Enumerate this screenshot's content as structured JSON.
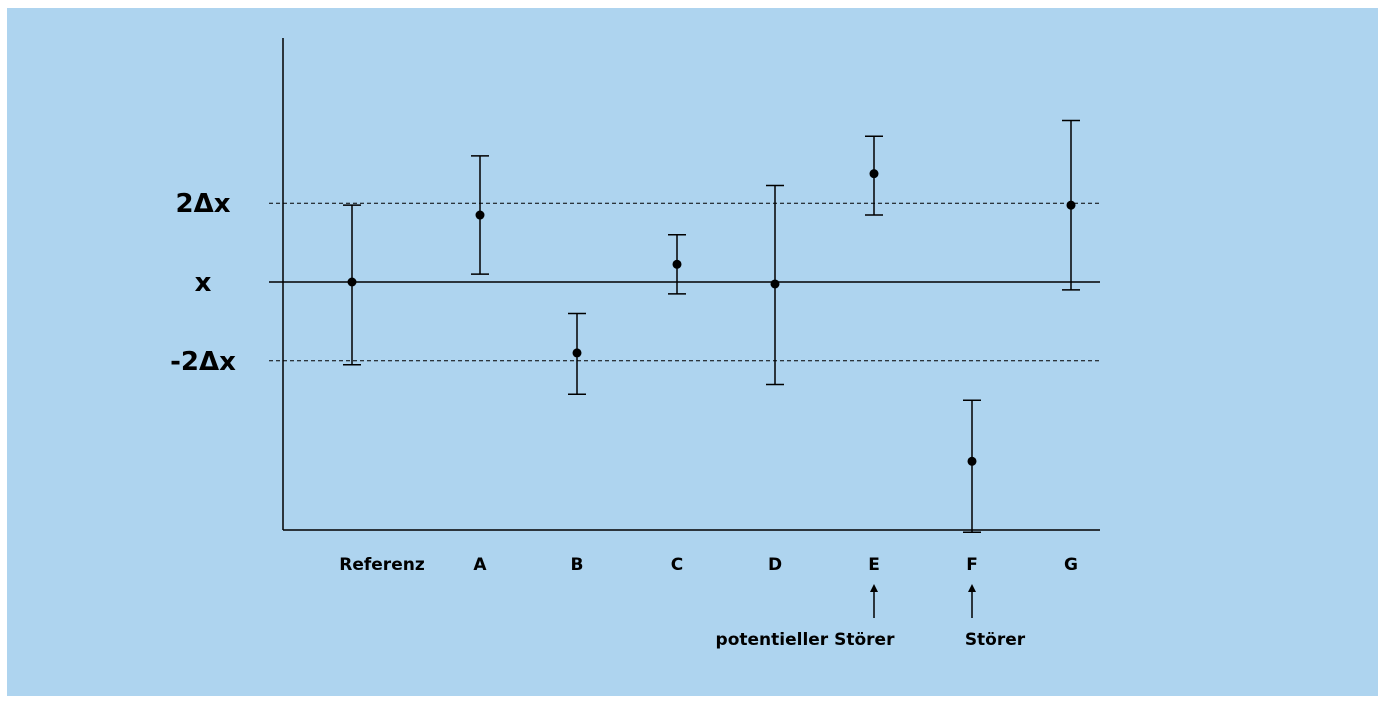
{
  "chart_data": {
    "type": "scatter",
    "title": "",
    "xlabel": "",
    "ylabel": "",
    "y_ticks": [
      {
        "value": 2,
        "label": "2Δx",
        "style": "dashed"
      },
      {
        "value": 0,
        "label": "x",
        "style": "solid"
      },
      {
        "value": -2,
        "label": "-2Δx",
        "style": "dashed"
      }
    ],
    "ylim": [
      -6.4,
      6.2
    ],
    "categories": [
      "Referenz",
      "A",
      "B",
      "C",
      "D",
      "E",
      "F",
      "G"
    ],
    "points": [
      {
        "category": "Referenz",
        "value": 0.0,
        "err_low": -2.1,
        "err_high": 1.95
      },
      {
        "category": "A",
        "value": 1.7,
        "err_low": 0.2,
        "err_high": 3.2
      },
      {
        "category": "B",
        "value": -1.8,
        "err_low": -2.85,
        "err_high": -0.8
      },
      {
        "category": "C",
        "value": 0.45,
        "err_low": -0.3,
        "err_high": 1.2
      },
      {
        "category": "D",
        "value": -0.05,
        "err_low": -2.6,
        "err_high": 2.45
      },
      {
        "category": "E",
        "value": 2.75,
        "err_low": 1.7,
        "err_high": 3.7
      },
      {
        "category": "F",
        "value": -4.55,
        "err_low": -6.35,
        "err_high": -3.0
      },
      {
        "category": "G",
        "value": 1.95,
        "err_low": -0.2,
        "err_high": 4.1
      }
    ],
    "annotations": [
      {
        "target": "E",
        "text": "potentieller Störer"
      },
      {
        "target": "F",
        "text": "Störer"
      }
    ],
    "colors": {
      "background": "#aed4ef",
      "ink": "#000000"
    }
  }
}
